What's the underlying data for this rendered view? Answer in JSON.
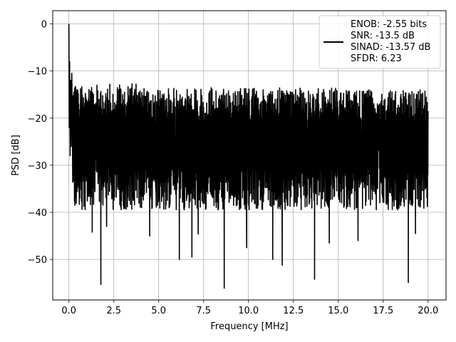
{
  "chart_data": {
    "type": "line",
    "xlabel": "Frequency [MHz]",
    "ylabel": "PSD [dB]",
    "xlim": [
      -0.9,
      21.0
    ],
    "ylim": [
      -58.6,
      2.8
    ],
    "xticks": [
      0.0,
      2.5,
      5.0,
      7.5,
      10.0,
      12.5,
      15.0,
      17.5,
      20.0
    ],
    "xtick_labels": [
      "0.0",
      "2.5",
      "5.0",
      "7.5",
      "10.0",
      "12.5",
      "15.0",
      "17.5",
      "20.0"
    ],
    "yticks": [
      0,
      -10,
      -20,
      -30,
      -40,
      -50
    ],
    "ytick_labels": [
      "0",
      "−10",
      "−20",
      "−30",
      "−40",
      "−50"
    ],
    "grid": true,
    "legend_position": "upper right",
    "legend_lines": [
      "ENOB: -2.55 bits",
      "SNR: -13.5 dB",
      "SINAD: -13.57 dB",
      "SFDR: 6.23"
    ],
    "line_color": "#000000",
    "series": [
      {
        "x_start": 0.0,
        "x_end": 20.0,
        "noise_envelope": {
          "upper_typical": -17,
          "lower_typical": -35,
          "mean": -27
        },
        "start_points": [
          {
            "x": 0.0,
            "y": 0.0
          },
          {
            "x": 0.02,
            "y": -22.0
          },
          {
            "x": 0.04,
            "y": -8.0
          },
          {
            "x": 0.07,
            "y": -28.0
          },
          {
            "x": 0.1,
            "y": -12.0
          },
          {
            "x": 0.13,
            "y": -26.0
          },
          {
            "x": 0.16,
            "y": -10.5
          },
          {
            "x": 0.2,
            "y": -25.0
          }
        ],
        "deep_dips": [
          {
            "x": 1.78,
            "y": -55.3
          },
          {
            "x": 8.65,
            "y": -56.1
          },
          {
            "x": 13.68,
            "y": -54.2
          },
          {
            "x": 18.9,
            "y": -54.9
          },
          {
            "x": 6.15,
            "y": -50.0
          },
          {
            "x": 6.85,
            "y": -49.5
          },
          {
            "x": 11.35,
            "y": -50.0
          },
          {
            "x": 11.88,
            "y": -51.2
          },
          {
            "x": 2.1,
            "y": -43.0
          },
          {
            "x": 4.5,
            "y": -45.0
          },
          {
            "x": 9.9,
            "y": -47.5
          },
          {
            "x": 14.5,
            "y": -46.5
          },
          {
            "x": 16.1,
            "y": -46.0
          },
          {
            "x": 19.3,
            "y": -44.5
          },
          {
            "x": 1.3,
            "y": -44.2
          },
          {
            "x": 7.2,
            "y": -44.6
          }
        ],
        "peaks": [
          {
            "x": 0.5,
            "y": -14.2
          },
          {
            "x": 1.2,
            "y": -14.3
          },
          {
            "x": 3.4,
            "y": -14.5
          },
          {
            "x": 8.7,
            "y": -15.2
          },
          {
            "x": 12.9,
            "y": -15.5
          },
          {
            "x": 17.6,
            "y": -16.0
          }
        ]
      }
    ]
  }
}
